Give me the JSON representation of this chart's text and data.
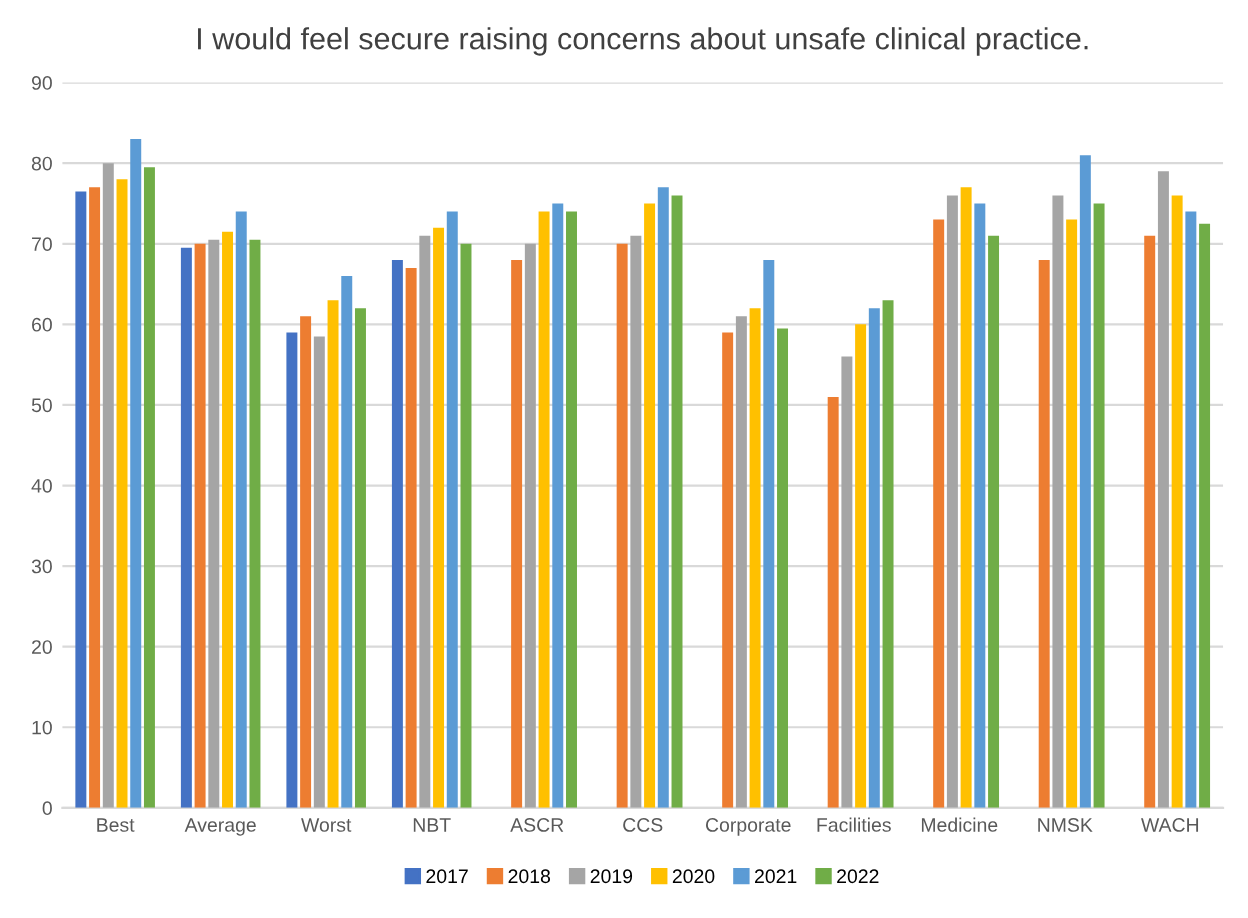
{
  "chart_data": {
    "type": "bar",
    "title": "I would feel secure raising concerns about unsafe clinical practice.",
    "categories": [
      "Best",
      "Average",
      "Worst",
      "NBT",
      "ASCR",
      "CCS",
      "Corporate",
      "Facilities",
      "Medicine",
      "NMSK",
      "WACH"
    ],
    "series": [
      {
        "name": "2017",
        "color": "#4472c4",
        "values": [
          76.5,
          69.5,
          59,
          68,
          null,
          null,
          null,
          null,
          null,
          null,
          null
        ]
      },
      {
        "name": "2018",
        "color": "#ed7d31",
        "values": [
          77,
          70,
          61,
          67,
          68,
          70,
          59,
          51,
          73,
          68,
          71
        ]
      },
      {
        "name": "2019",
        "color": "#a5a5a5",
        "values": [
          80,
          70.5,
          58.5,
          71,
          70,
          71,
          61,
          56,
          76,
          76,
          79
        ]
      },
      {
        "name": "2020",
        "color": "#ffc000",
        "values": [
          78,
          71.5,
          63,
          72,
          74,
          75,
          62,
          60,
          77,
          73,
          76
        ]
      },
      {
        "name": "2021",
        "color": "#5b9bd5",
        "values": [
          83,
          74,
          66,
          74,
          75,
          77,
          68,
          62,
          75,
          81,
          74
        ]
      },
      {
        "name": "2022",
        "color": "#70ad47",
        "values": [
          79.5,
          70.5,
          62,
          70,
          74,
          76,
          59.5,
          63,
          71,
          75,
          72.5
        ]
      }
    ],
    "ylim": [
      0,
      90
    ],
    "yticks": [
      0,
      10,
      20,
      30,
      40,
      50,
      60,
      70,
      80,
      90
    ],
    "grid": "y",
    "legend": "bottom"
  }
}
